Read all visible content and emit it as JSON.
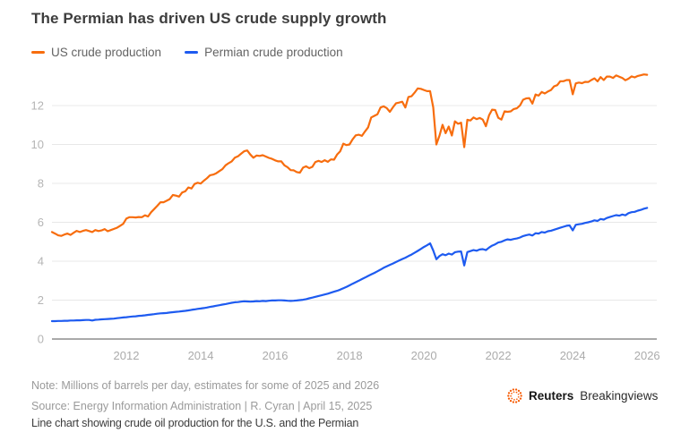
{
  "title": "The Permian has driven US crude supply growth",
  "legend": {
    "items": [
      {
        "label": "US crude production",
        "color": "#f76d0e"
      },
      {
        "label": "Permian crude production",
        "color": "#1e5bf0"
      }
    ]
  },
  "footer": {
    "note": "Note: Millions of barrels per day, estimates for some of 2025 and 2026",
    "source": "Source: Energy Information Administration | R. Cyran | April 15, 2025",
    "caption": "Line chart showing crude oil production for the U.S. and the Permian"
  },
  "branding": {
    "icon": "reuters-dotted-circle",
    "icon_color": "#f75900",
    "name": "Reuters",
    "suffix": "Breakingviews"
  },
  "chart_data": {
    "type": "line",
    "title": "The Permian has driven US crude supply growth",
    "xlabel": "",
    "ylabel": "Millions of barrels per day",
    "x_start_year": 2010,
    "x_step_years": 0.0833333,
    "xticks": [
      2012,
      2014,
      2016,
      2018,
      2020,
      2022,
      2024,
      2026
    ],
    "yticks": [
      0,
      2,
      4,
      6,
      8,
      10,
      12
    ],
    "ylim": [
      0,
      13.85
    ],
    "grid": "horizontal",
    "legend_position": "top-left",
    "series": [
      {
        "name": "US crude production",
        "color": "#f76d0e",
        "values": [
          5.5,
          5.42,
          5.33,
          5.3,
          5.37,
          5.42,
          5.35,
          5.46,
          5.56,
          5.5,
          5.56,
          5.6,
          5.55,
          5.5,
          5.6,
          5.55,
          5.58,
          5.65,
          5.54,
          5.6,
          5.66,
          5.72,
          5.82,
          5.92,
          6.19,
          6.26,
          6.26,
          6.25,
          6.27,
          6.26,
          6.36,
          6.3,
          6.52,
          6.68,
          6.85,
          7.03,
          7.03,
          7.11,
          7.19,
          7.4,
          7.37,
          7.32,
          7.53,
          7.59,
          7.79,
          7.74,
          7.97,
          8.03,
          7.99,
          8.14,
          8.26,
          8.42,
          8.45,
          8.52,
          8.63,
          8.73,
          8.93,
          9.04,
          9.13,
          9.32,
          9.39,
          9.52,
          9.65,
          9.69,
          9.48,
          9.32,
          9.43,
          9.41,
          9.45,
          9.38,
          9.31,
          9.26,
          9.18,
          9.13,
          9.13,
          8.93,
          8.83,
          8.68,
          8.67,
          8.58,
          8.55,
          8.81,
          8.88,
          8.78,
          8.85,
          9.1,
          9.16,
          9.1,
          9.19,
          9.11,
          9.23,
          9.22,
          9.48,
          9.65,
          10.04,
          9.97,
          10.0,
          10.26,
          10.47,
          10.5,
          10.44,
          10.67,
          10.88,
          11.39,
          11.47,
          11.55,
          11.9,
          11.96,
          11.87,
          11.68,
          11.91,
          12.12,
          12.15,
          12.2,
          11.9,
          12.44,
          12.48,
          12.66,
          12.88,
          12.86,
          12.8,
          12.74,
          12.74,
          11.91,
          10.0,
          10.44,
          11.01,
          10.58,
          10.92,
          10.46,
          11.19,
          11.06,
          11.12,
          9.86,
          11.27,
          11.23,
          11.39,
          11.3,
          11.36,
          11.28,
          10.94,
          11.5,
          11.79,
          11.77,
          11.37,
          11.28,
          11.7,
          11.68,
          11.7,
          11.82,
          11.86,
          12.01,
          12.3,
          12.37,
          12.38,
          12.1,
          12.57,
          12.51,
          12.7,
          12.62,
          12.72,
          12.8,
          12.99,
          13.05,
          13.25,
          13.25,
          13.31,
          13.31,
          12.58,
          13.14,
          13.18,
          13.15,
          13.22,
          13.21,
          13.31,
          13.4,
          13.24,
          13.46,
          13.31,
          13.49,
          13.49,
          13.42,
          13.55,
          13.48,
          13.42,
          13.3,
          13.38,
          13.5,
          13.45,
          13.52,
          13.56,
          13.6,
          13.58
        ]
      },
      {
        "name": "Permian crude production",
        "color": "#1e5bf0",
        "values": [
          0.92,
          0.92,
          0.93,
          0.93,
          0.94,
          0.94,
          0.95,
          0.95,
          0.96,
          0.96,
          0.97,
          0.98,
          0.98,
          0.95,
          0.99,
          1.0,
          1.01,
          1.02,
          1.03,
          1.04,
          1.05,
          1.07,
          1.09,
          1.11,
          1.12,
          1.14,
          1.16,
          1.17,
          1.19,
          1.2,
          1.22,
          1.24,
          1.26,
          1.28,
          1.3,
          1.32,
          1.33,
          1.34,
          1.36,
          1.38,
          1.4,
          1.41,
          1.43,
          1.45,
          1.47,
          1.5,
          1.52,
          1.55,
          1.57,
          1.59,
          1.62,
          1.65,
          1.68,
          1.71,
          1.74,
          1.77,
          1.8,
          1.83,
          1.86,
          1.89,
          1.9,
          1.92,
          1.94,
          1.93,
          1.92,
          1.93,
          1.95,
          1.94,
          1.96,
          1.95,
          1.97,
          1.98,
          1.98,
          1.99,
          1.99,
          1.98,
          1.97,
          1.96,
          1.97,
          1.98,
          2.0,
          2.02,
          2.05,
          2.09,
          2.13,
          2.17,
          2.21,
          2.25,
          2.29,
          2.33,
          2.38,
          2.43,
          2.48,
          2.54,
          2.61,
          2.68,
          2.76,
          2.84,
          2.92,
          3.0,
          3.08,
          3.16,
          3.24,
          3.32,
          3.4,
          3.48,
          3.57,
          3.66,
          3.74,
          3.81,
          3.88,
          3.96,
          4.03,
          4.11,
          4.18,
          4.26,
          4.34,
          4.43,
          4.53,
          4.63,
          4.73,
          4.82,
          4.92,
          4.55,
          4.1,
          4.26,
          4.36,
          4.31,
          4.39,
          4.34,
          4.46,
          4.49,
          4.5,
          3.78,
          4.47,
          4.52,
          4.57,
          4.54,
          4.6,
          4.62,
          4.57,
          4.7,
          4.8,
          4.87,
          4.96,
          5.0,
          5.07,
          5.12,
          5.1,
          5.14,
          5.17,
          5.22,
          5.29,
          5.34,
          5.37,
          5.32,
          5.44,
          5.42,
          5.5,
          5.47,
          5.54,
          5.57,
          5.62,
          5.67,
          5.72,
          5.77,
          5.82,
          5.84,
          5.58,
          5.87,
          5.9,
          5.92,
          5.97,
          6.0,
          6.04,
          6.1,
          6.07,
          6.17,
          6.14,
          6.22,
          6.27,
          6.32,
          6.37,
          6.34,
          6.4,
          6.36,
          6.47,
          6.52,
          6.54,
          6.6,
          6.64,
          6.7,
          6.74
        ]
      }
    ]
  }
}
